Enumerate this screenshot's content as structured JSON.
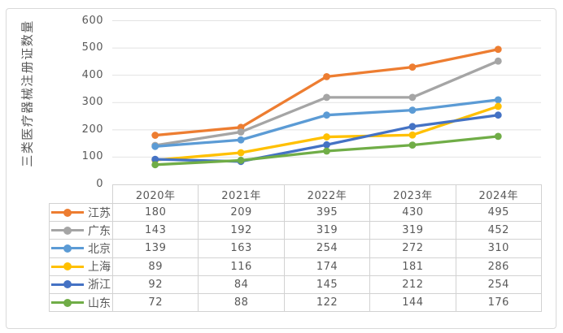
{
  "figure": {
    "background": "#FFFFFF",
    "border_color": "#D9D9D9"
  },
  "chart_data": {
    "type": "line",
    "title": "",
    "xlabel": "",
    "ylabel": "三类医疗器械注册证数量",
    "categories": [
      "2020年",
      "2021年",
      "2022年",
      "2023年",
      "2024年"
    ],
    "series": [
      {
        "name": "江苏",
        "color": "#ED7D31",
        "values": [
          180,
          209,
          395,
          430,
          495
        ]
      },
      {
        "name": "广东",
        "color": "#A5A5A5",
        "values": [
          143,
          192,
          319,
          319,
          452
        ]
      },
      {
        "name": "北京",
        "color": "#5B9BD5",
        "values": [
          139,
          163,
          254,
          272,
          310
        ]
      },
      {
        "name": "上海",
        "color": "#FFC000",
        "values": [
          89,
          116,
          174,
          181,
          286
        ]
      },
      {
        "name": "浙江",
        "color": "#4472C4",
        "values": [
          92,
          84,
          145,
          212,
          254
        ]
      },
      {
        "name": "山东",
        "color": "#70AD47",
        "values": [
          72,
          88,
          122,
          144,
          176
        ]
      }
    ],
    "ylim": [
      0,
      600
    ],
    "yticks": [
      0,
      100,
      200,
      300,
      400,
      500,
      600
    ],
    "grid": true,
    "grid_color": "#E2E2E2",
    "axis_text_color": "#595959",
    "table_border_color": "#D2D2D2",
    "marker": "circle",
    "legend_position": "data-table-left",
    "data_table_shown": true
  }
}
